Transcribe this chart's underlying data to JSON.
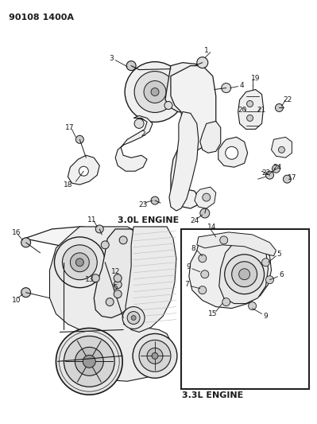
{
  "title": "90108 1400A",
  "bg_color": "#ffffff",
  "lc": "#1a1a1a",
  "fig_width": 3.99,
  "fig_height": 5.33,
  "dpi": 100,
  "top_label": "3.0L ENGINE",
  "bottom_label": "3.3L ENGINE"
}
